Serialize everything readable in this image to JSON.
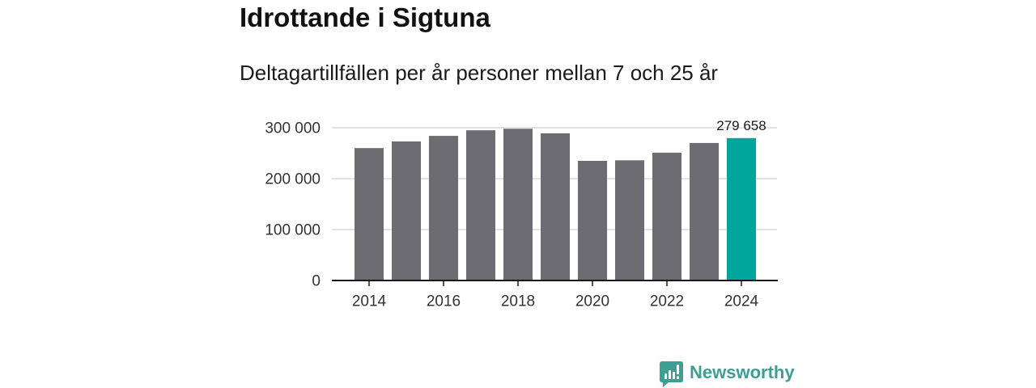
{
  "colors": {
    "bar": "#6d6c72",
    "highlight": "#00a59b",
    "grid": "#d9d9d9",
    "axis": "#1a1a1a",
    "text": "#1a1a1a",
    "brand": "#3d9f93"
  },
  "chart_data": {
    "type": "bar",
    "title": "Idrottande i Sigtuna",
    "subtitle": "Deltagartillfällen per år personer mellan 7 och 25 år",
    "x": [
      2014,
      2015,
      2016,
      2017,
      2018,
      2019,
      2020,
      2021,
      2022,
      2023,
      2024
    ],
    "values": [
      260000,
      273000,
      284000,
      295000,
      298000,
      289000,
      235000,
      236000,
      251000,
      270000,
      279658
    ],
    "highlight_x": 2024,
    "highlight_label": "279 658",
    "ylim": [
      0,
      300000
    ],
    "yticks": [
      0,
      100000,
      200000,
      300000
    ],
    "ytick_labels": [
      "0",
      "100 000",
      "200 000",
      "300 000"
    ],
    "xticks": [
      2014,
      2016,
      2018,
      2020,
      2022,
      2024
    ],
    "xtick_labels": [
      "2014",
      "2016",
      "2018",
      "2020",
      "2022",
      "2024"
    ],
    "grid": true
  },
  "brand": {
    "name": "Newsworthy",
    "icon": "newsworthy-logo-icon"
  }
}
